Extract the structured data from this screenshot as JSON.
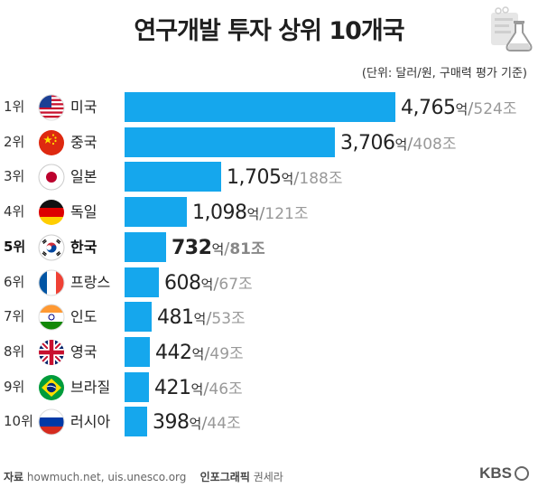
{
  "header": {
    "title": "연구개발 투자 상위 10개국",
    "unit_note": "(단위: 달러/원, 구매력 평가 기준)"
  },
  "chart_data": {
    "type": "bar",
    "orientation": "horizontal",
    "title": "연구개발 투자 상위 10개국",
    "unit_note": "(단위: 달러/원, 구매력 평가 기준)",
    "highlight_index": 4,
    "bar_color": "#15a7ed",
    "rows": [
      {
        "rank": "1위",
        "country": "미국",
        "flag": "usa-flag",
        "value": 4765,
        "amount": "4,765",
        "unit_eok": "억",
        "won": "524조"
      },
      {
        "rank": "2위",
        "country": "중국",
        "flag": "china-flag",
        "value": 3706,
        "amount": "3,706",
        "unit_eok": "억",
        "won": "408조"
      },
      {
        "rank": "3위",
        "country": "일본",
        "flag": "japan-flag",
        "value": 1705,
        "amount": "1,705",
        "unit_eok": "억",
        "won": "188조"
      },
      {
        "rank": "4위",
        "country": "독일",
        "flag": "germany-flag",
        "value": 1098,
        "amount": "1,098",
        "unit_eok": "억",
        "won": "121조"
      },
      {
        "rank": "5위",
        "country": "한국",
        "flag": "korea-flag",
        "value": 732,
        "amount": "732",
        "unit_eok": "억",
        "won": "81조"
      },
      {
        "rank": "6위",
        "country": "프랑스",
        "flag": "france-flag",
        "value": 608,
        "amount": "608",
        "unit_eok": "억",
        "won": "67조"
      },
      {
        "rank": "7위",
        "country": "인도",
        "flag": "india-flag",
        "value": 481,
        "amount": "481",
        "unit_eok": "억",
        "won": "53조"
      },
      {
        "rank": "8위",
        "country": "영국",
        "flag": "uk-flag",
        "value": 442,
        "amount": "442",
        "unit_eok": "억",
        "won": "49조"
      },
      {
        "rank": "9위",
        "country": "브라질",
        "flag": "brazil-flag",
        "value": 421,
        "amount": "421",
        "unit_eok": "억",
        "won": "46조"
      },
      {
        "rank": "10위",
        "country": "러시아",
        "flag": "russia-flag",
        "value": 398,
        "amount": "398",
        "unit_eok": "억",
        "won": "44조"
      }
    ]
  },
  "footer": {
    "source_label": "자료",
    "source_text": "howmuch.net, uis.unesco.org",
    "credit_label": "인포그래픽",
    "credit_name": "권세라"
  },
  "brand": {
    "logo_text": "KBS"
  }
}
